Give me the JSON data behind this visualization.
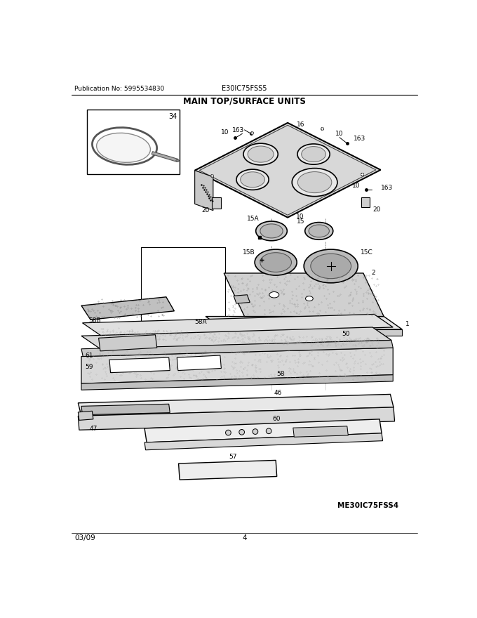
{
  "pub_no": "Publication No: 5995534830",
  "model": "E30IC75FSS5",
  "title": "MAIN TOP/SURFACE UNITS",
  "footer_left": "03/09",
  "footer_center": "4",
  "footer_right": "ME30IC75FSS4",
  "bg_color": "#ffffff",
  "fig_width": 6.8,
  "fig_height": 8.8,
  "dpi": 100
}
